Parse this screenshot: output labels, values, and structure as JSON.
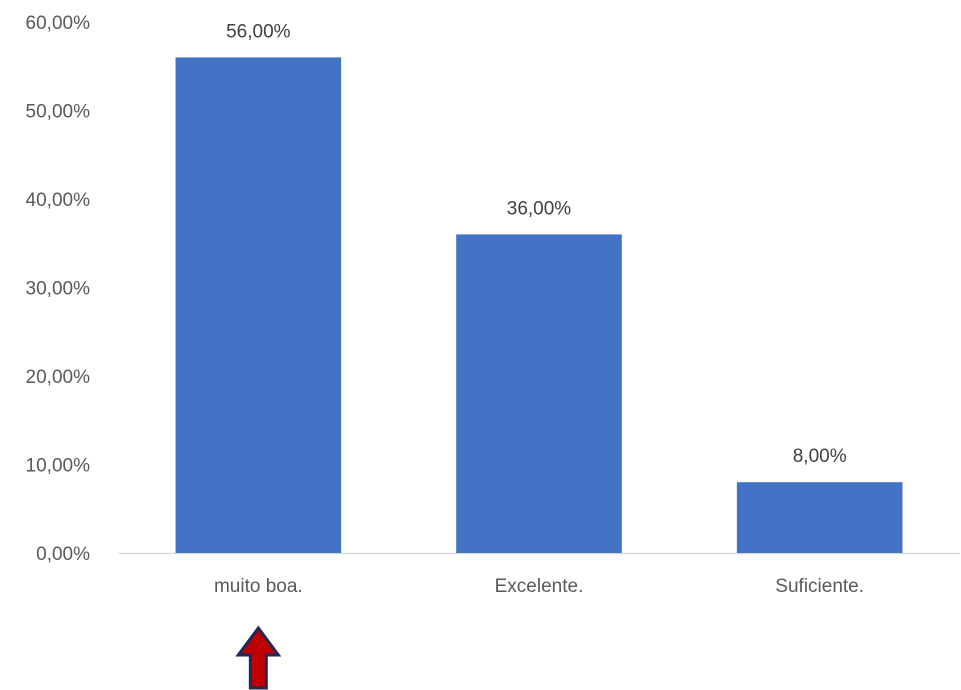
{
  "chart_data": {
    "type": "bar",
    "categories": [
      "muito boa.",
      "Excelente.",
      "Suficiente."
    ],
    "values": [
      56,
      36,
      8
    ],
    "data_labels": [
      "56,00%",
      "36,00%",
      "8,00%"
    ],
    "title": "",
    "xlabel": "",
    "ylabel": "",
    "ylim": [
      0,
      60
    ],
    "yticks": [
      0,
      10,
      20,
      30,
      40,
      50,
      60
    ],
    "ytick_labels": [
      "0,00%",
      "10,00%",
      "20,00%",
      "30,00%",
      "40,00%",
      "50,00%",
      "60,00%"
    ],
    "grid": false,
    "legend": "none",
    "bar_color": "#4472C4",
    "axis_color": "#D9D9D9",
    "text_color": "#595959",
    "annotation": {
      "type": "arrow-up",
      "target_category": "muito boa.",
      "fill_color": "#C00000",
      "stroke_color": "#1F2A5A"
    }
  }
}
